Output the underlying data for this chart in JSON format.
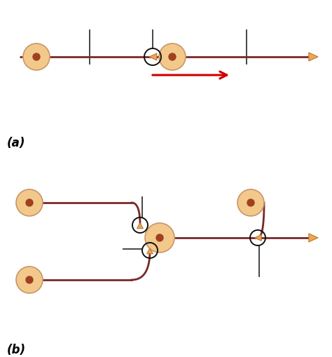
{
  "bg_color": "#ffffff",
  "neuron_body_color": "#f2c98a",
  "neuron_body_edge": "#c8966a",
  "nucleus_color": "#a04020",
  "axon_color": "#7a2828",
  "axon_lw": 2.0,
  "dendrite_color": "#444444",
  "dendrite_lw": 1.4,
  "synapse_circle_color": "#111111",
  "synapse_circle_lw": 1.4,
  "triangle_color": "#e8a855",
  "triangle_edge": "#c07830",
  "arrow_color": "#cc0000",
  "label_a": "(a)",
  "label_b": "(b)",
  "label_fontsize": 12,
  "label_fontstyle": "italic"
}
